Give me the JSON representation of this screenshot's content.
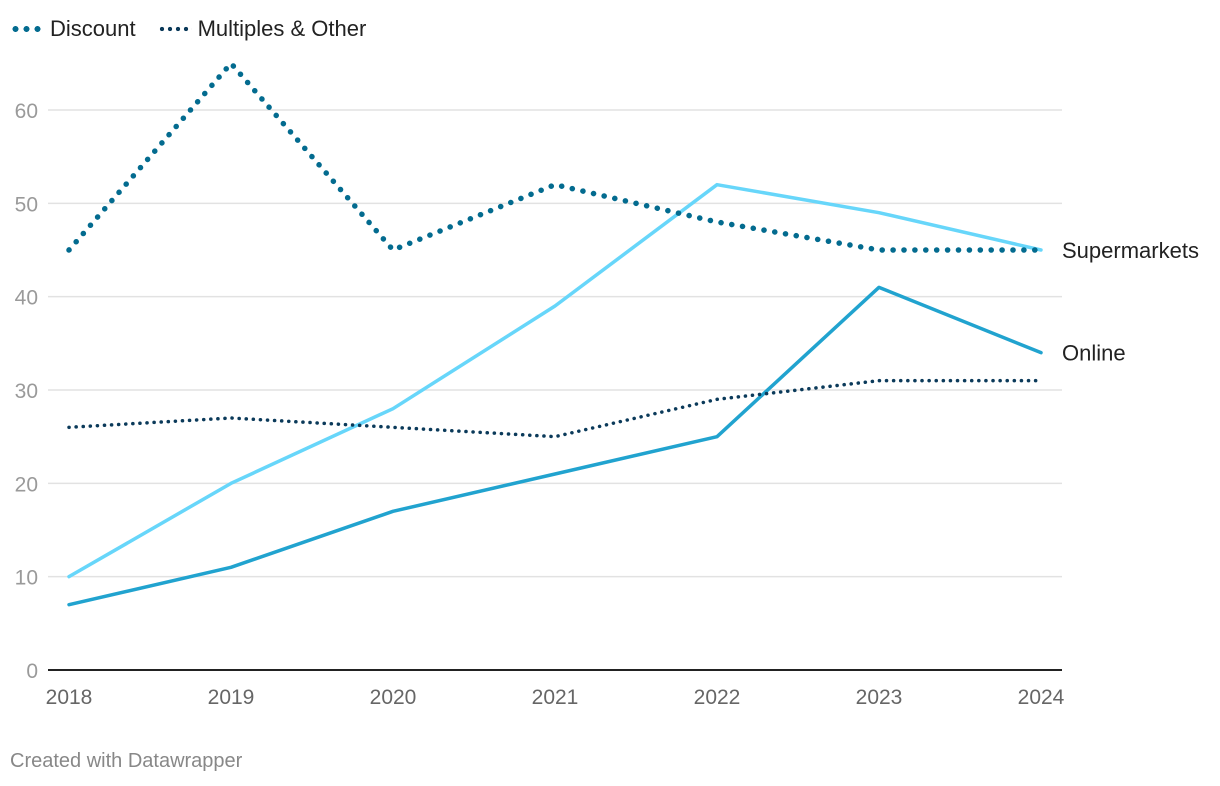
{
  "legend": [
    {
      "label": "Discount",
      "color": "#036b8f",
      "style": "dots-big"
    },
    {
      "label": "Multiples & Other",
      "color": "#0b3a5a",
      "style": "dots-small"
    }
  ],
  "footer": "Created with Datawrapper",
  "chart_data": {
    "type": "line",
    "title": "",
    "xlabel": "",
    "ylabel": "",
    "x": [
      "2018",
      "2019",
      "2020",
      "2021",
      "2022",
      "2023",
      "2024"
    ],
    "ylim": [
      0,
      66
    ],
    "yticks": [
      0,
      10,
      20,
      30,
      40,
      50,
      60
    ],
    "grid": true,
    "series": [
      {
        "name": "Discount",
        "color": "#036b8f",
        "dash": "big-dots",
        "values": [
          45,
          65,
          45,
          52,
          48,
          45,
          45
        ]
      },
      {
        "name": "Multiples & Other",
        "color": "#0b3a5a",
        "dash": "small-dots",
        "values": [
          26,
          27,
          26,
          25,
          29,
          31,
          31
        ]
      },
      {
        "name": "Supermarkets",
        "color": "#67d6fa",
        "dash": "solid",
        "values": [
          10,
          20,
          28,
          39,
          52,
          49,
          45
        ],
        "end_label": "Supermarkets"
      },
      {
        "name": "Online",
        "color": "#21a3cf",
        "dash": "solid",
        "values": [
          7,
          11,
          17,
          21,
          25,
          41,
          34
        ],
        "end_label": "Online"
      }
    ]
  }
}
